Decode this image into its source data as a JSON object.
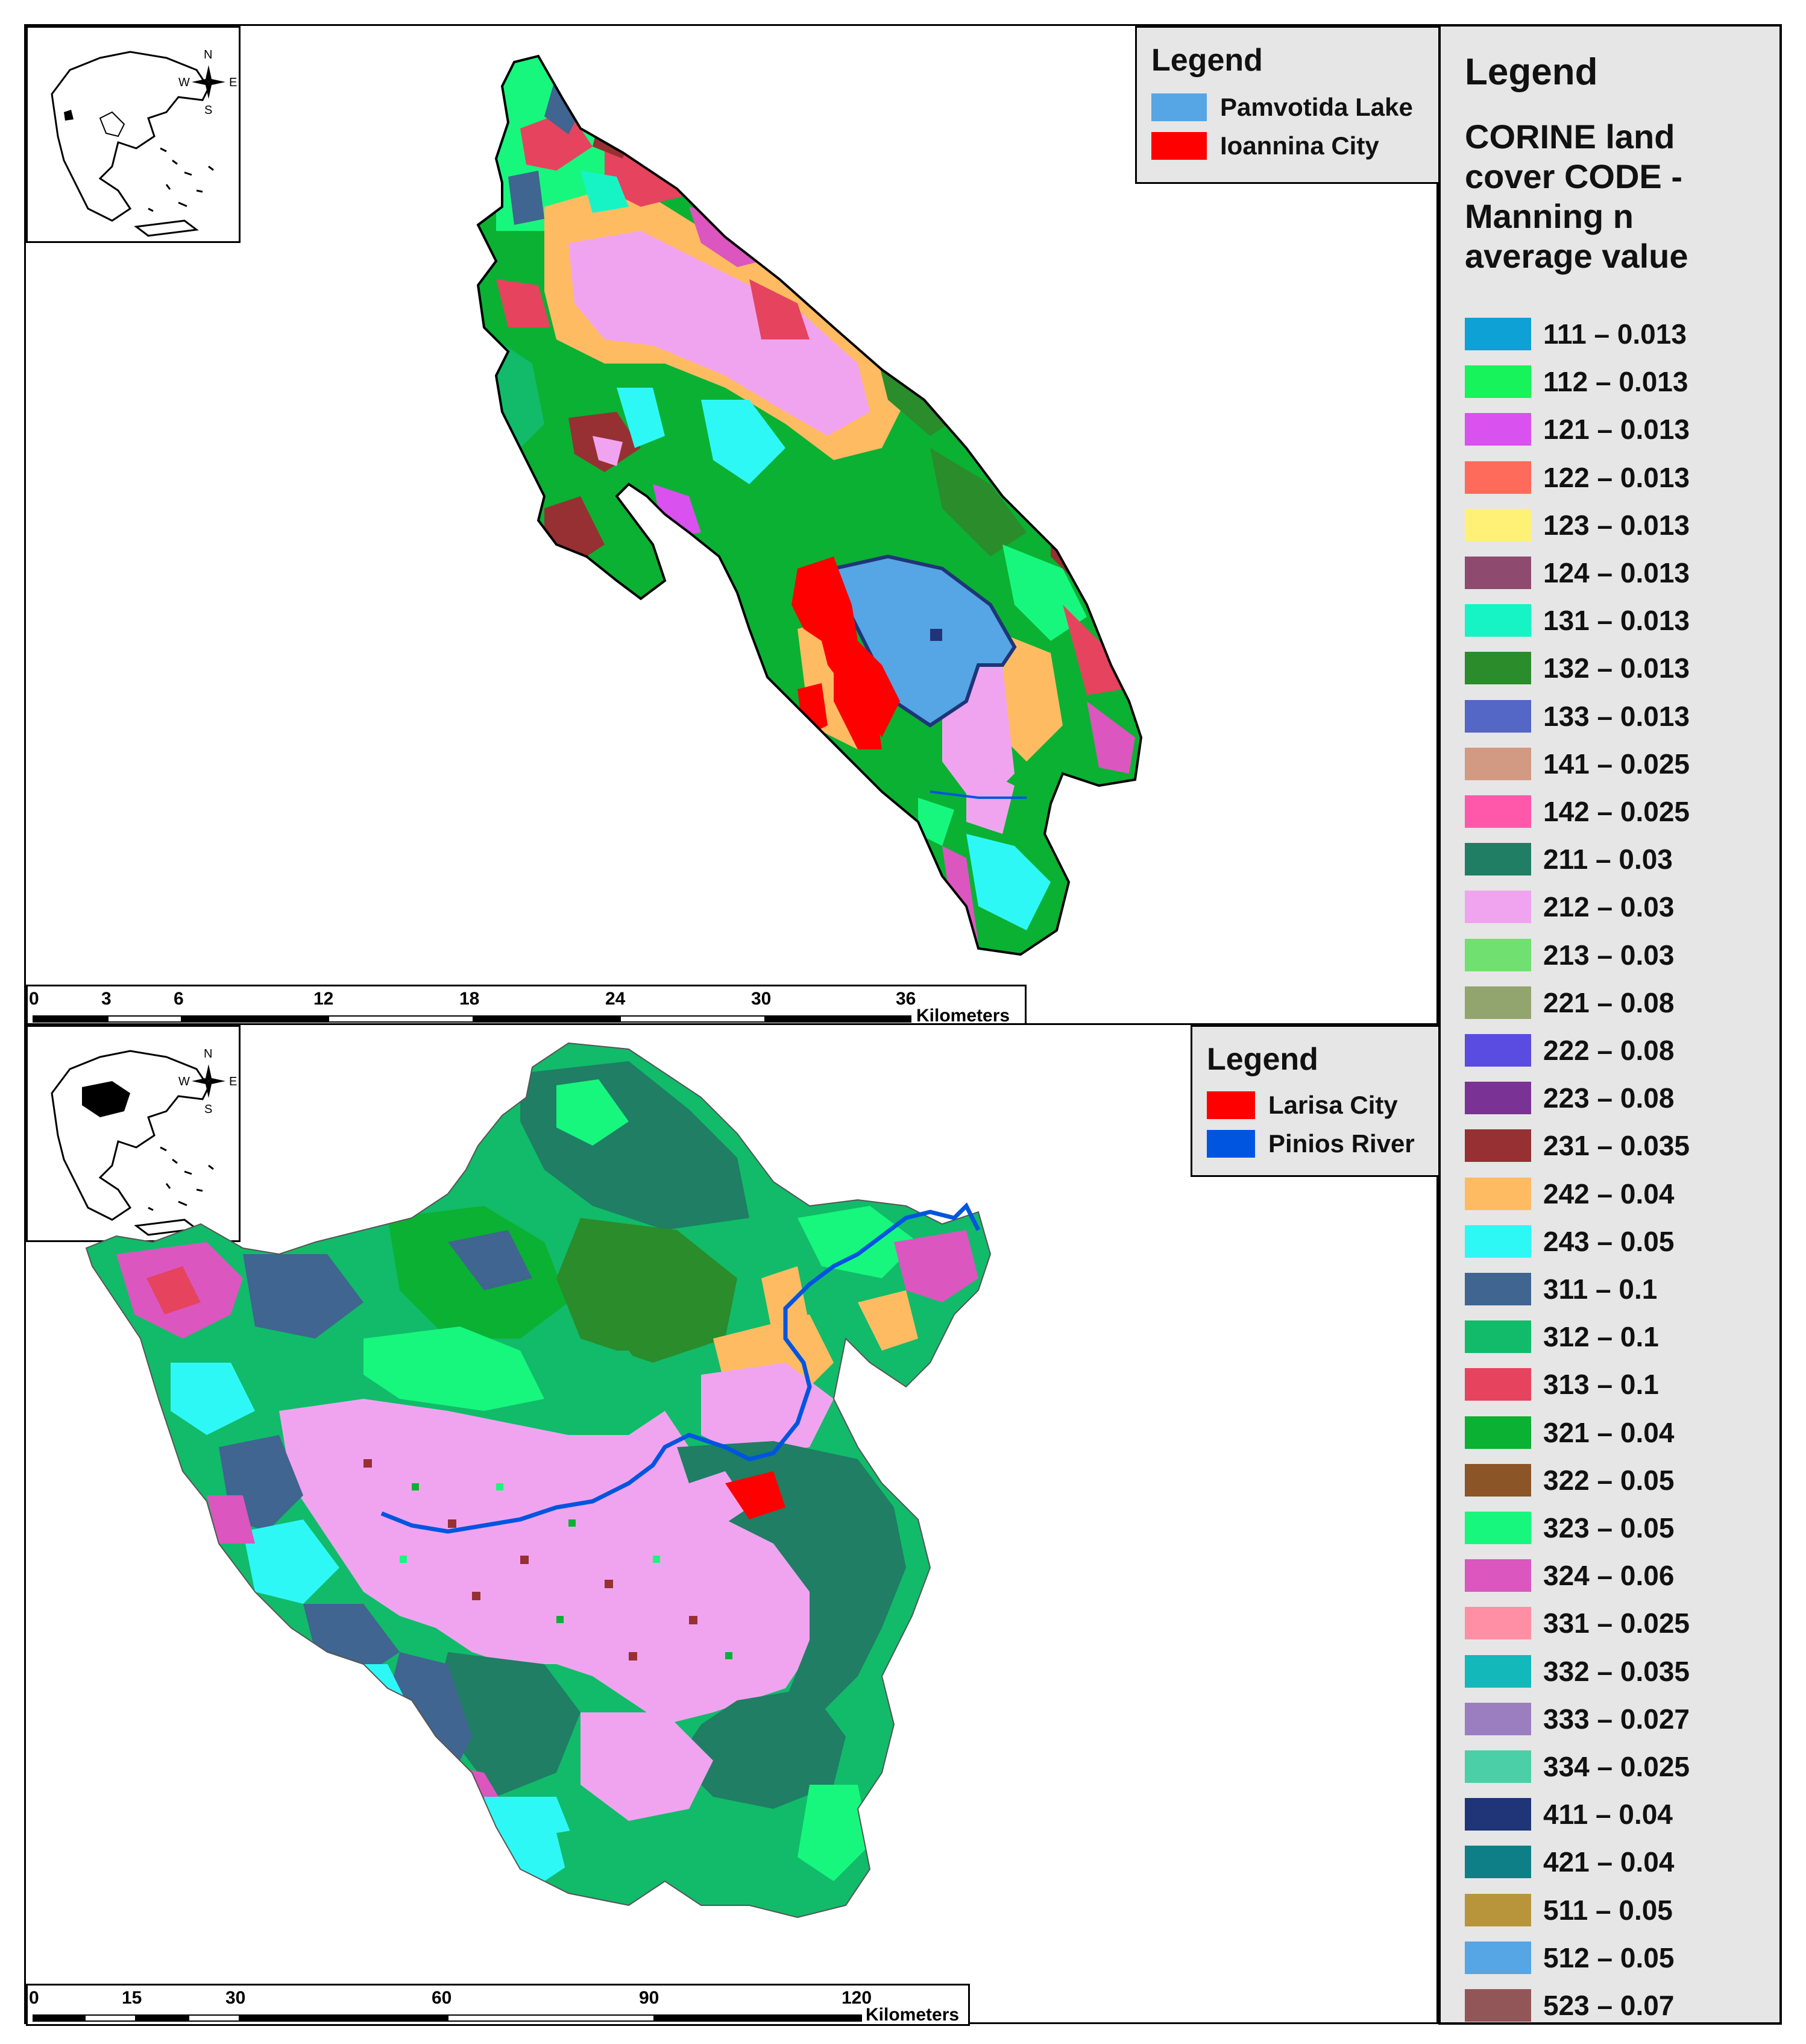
{
  "top_map": {
    "legend": {
      "title": "Legend",
      "items": [
        {
          "label": "Pamvotida Lake",
          "color": "#56a5e4"
        },
        {
          "label": "Ioannina City",
          "color": "#ff0000"
        }
      ]
    },
    "scale": {
      "ticks": [
        "0",
        "3",
        "6",
        "12",
        "18",
        "24",
        "30",
        "36"
      ],
      "unit": "Kilometers"
    },
    "compass": {
      "n": "N",
      "s": "S",
      "e": "E",
      "w": "W"
    }
  },
  "bottom_map": {
    "legend": {
      "title": "Legend",
      "items": [
        {
          "label": "Larisa City",
          "color": "#ff0000"
        },
        {
          "label": "Pinios River",
          "color": "#0055e0"
        }
      ]
    },
    "scale": {
      "ticks": [
        "0",
        "15",
        "30",
        "60",
        "90",
        "120"
      ],
      "unit": "Kilometers"
    },
    "compass": {
      "n": "N",
      "s": "S",
      "e": "E",
      "w": "W"
    }
  },
  "main_legend": {
    "title": "Legend",
    "subtitle": "CORINE land cover CODE - Manning n average value",
    "items": [
      {
        "label": "111 – 0.013",
        "color": "#0ea1d6"
      },
      {
        "label": "112 – 0.013",
        "color": "#16f35b"
      },
      {
        "label": "121 – 0.013",
        "color": "#d951ef"
      },
      {
        "label": "122 – 0.013",
        "color": "#ff6b5b"
      },
      {
        "label": "123 – 0.013",
        "color": "#fff176"
      },
      {
        "label": "124 – 0.013",
        "color": "#8e4a6f"
      },
      {
        "label": "131 – 0.013",
        "color": "#16f4c6"
      },
      {
        "label": "132 – 0.013",
        "color": "#2a8c2a"
      },
      {
        "label": "133 – 0.013",
        "color": "#5466c6"
      },
      {
        "label": "141 – 0.025",
        "color": "#d29a82"
      },
      {
        "label": "142 – 0.025",
        "color": "#ff58ab"
      },
      {
        "label": "211 – 0.03",
        "color": "#1f7e64"
      },
      {
        "label": "212 – 0.03",
        "color": "#f0a4f0"
      },
      {
        "label": "213 – 0.03",
        "color": "#70e070"
      },
      {
        "label": "221 – 0.08",
        "color": "#93a56f"
      },
      {
        "label": "222 – 0.08",
        "color": "#5a4ce0"
      },
      {
        "label": "223 – 0.08",
        "color": "#7a3294"
      },
      {
        "label": "231 – 0.035",
        "color": "#963033"
      },
      {
        "label": "242 – 0.04",
        "color": "#ffbb62"
      },
      {
        "label": "243 – 0.05",
        "color": "#2ef8f6"
      },
      {
        "label": "311 – 0.1",
        "color": "#3f6590"
      },
      {
        "label": "312 – 0.1",
        "color": "#11bb6a"
      },
      {
        "label": "313 – 0.1",
        "color": "#e6435f"
      },
      {
        "label": "321 – 0.04",
        "color": "#0bb132"
      },
      {
        "label": "322 – 0.05",
        "color": "#8b5528"
      },
      {
        "label": "323 – 0.05",
        "color": "#17f77d"
      },
      {
        "label": "324 – 0.06",
        "color": "#db56bf"
      },
      {
        "label": "331 – 0.025",
        "color": "#ff8fa4"
      },
      {
        "label": "332 – 0.035",
        "color": "#12b8ba"
      },
      {
        "label": "333 – 0.027",
        "color": "#9b7ec0"
      },
      {
        "label": "334 – 0.025",
        "color": "#4bcfa6"
      },
      {
        "label": "411 – 0.04",
        "color": "#1f3578"
      },
      {
        "label": "421 – 0.04",
        "color": "#0f7f87"
      },
      {
        "label": "511 – 0.05",
        "color": "#b8953a"
      },
      {
        "label": "512 – 0.05",
        "color": "#56a5e4"
      },
      {
        "label": "523 – 0.07",
        "color": "#935658"
      }
    ]
  }
}
